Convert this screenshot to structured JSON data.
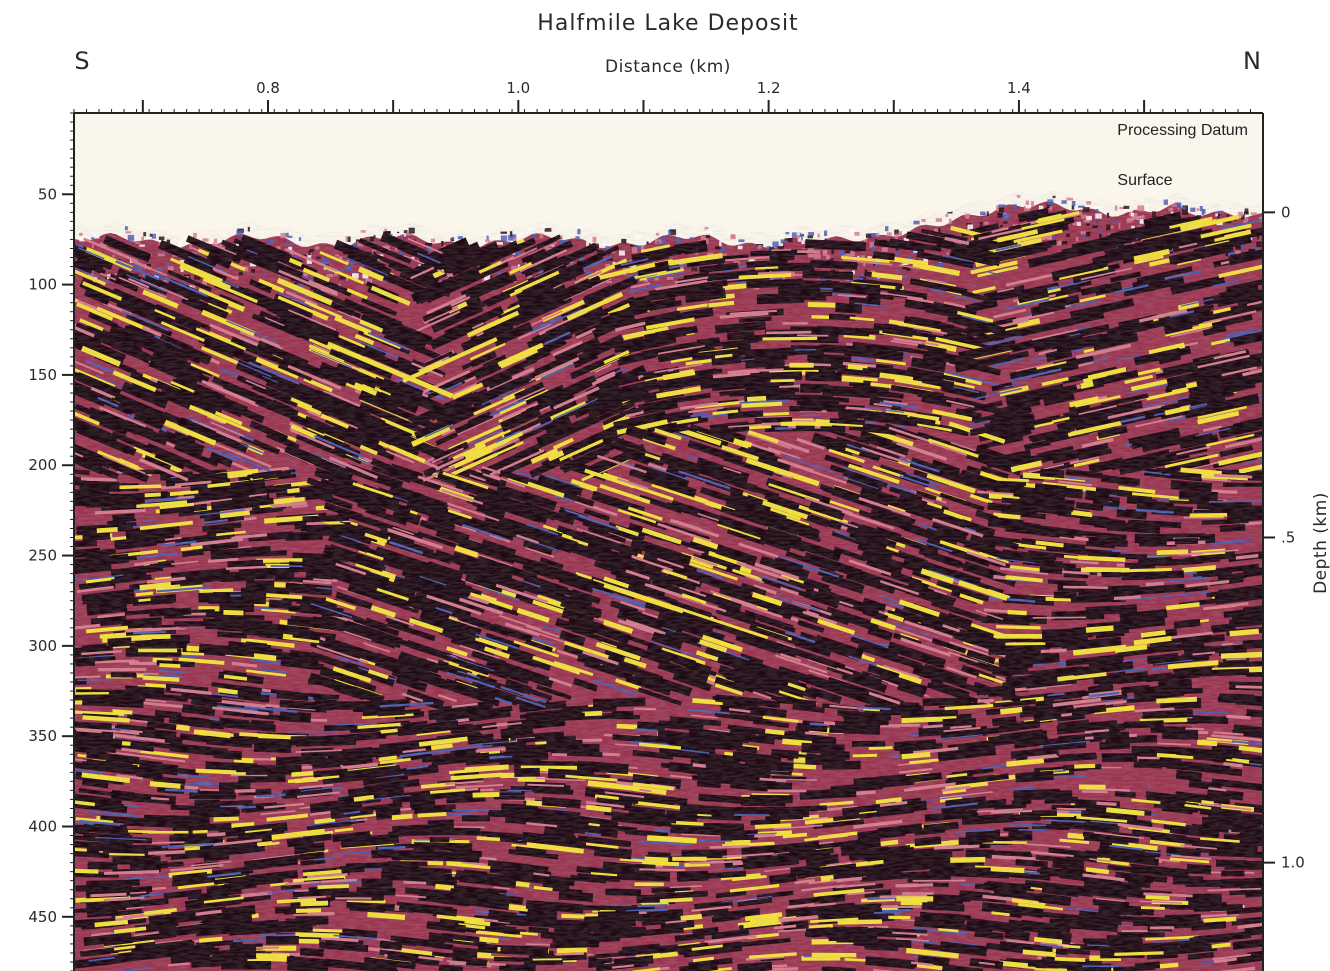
{
  "chart_data": {
    "type": "heatmap",
    "title": "Halfmile Lake Deposit",
    "xlabel": "Distance (km)",
    "y2label": "Depth (km)",
    "direction_left": "S",
    "direction_right": "N",
    "x_ticks": [
      "0.8",
      "1.0",
      "1.2",
      "1.4"
    ],
    "x_tick_values": [
      0.8,
      1.0,
      1.2,
      1.4
    ],
    "xlim": [
      0.645,
      1.595
    ],
    "y_ticks": [
      "50",
      "100",
      "150",
      "200",
      "250",
      "300",
      "350",
      "400",
      "450"
    ],
    "y_tick_values": [
      50,
      100,
      150,
      200,
      250,
      300,
      350,
      400,
      450
    ],
    "ylim": [
      5,
      480
    ],
    "y2_ticks": [
      "0",
      ".5",
      "1.0"
    ],
    "y2_tick_values": [
      0,
      0.5,
      1.0
    ],
    "y2_ref_time": [
      60,
      240,
      420
    ],
    "annotations": [
      "Processing Datum",
      "Surface"
    ],
    "colors": {
      "background": "#fbf6ec",
      "section_dark": "#1e0a14",
      "section_red": "#9a3550",
      "section_pink": "#d57a8c",
      "section_blue": "#4a5bb0",
      "section_yellow": "#f3e03a"
    }
  }
}
